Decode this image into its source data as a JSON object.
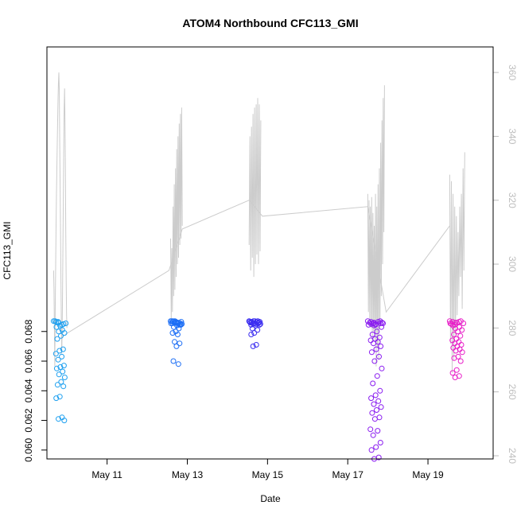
{
  "chart_data": {
    "type": "scatter",
    "title": "ATOM4 Northbound CFC113_GMI",
    "xlabel": "Date",
    "ylabel": "CFC113_GMI",
    "xlim": [
      "2018-05-09 12:00",
      "2018-05-20 15:00"
    ],
    "ylim": [
      0.0594,
      0.0872
    ],
    "y2lim": [
      239,
      368
    ],
    "x_ticks": [
      {
        "label": "May 11",
        "date": "2018-05-11"
      },
      {
        "label": "May 13",
        "date": "2018-05-13"
      },
      {
        "label": "May 15",
        "date": "2018-05-15"
      },
      {
        "label": "May 17",
        "date": "2018-05-17"
      },
      {
        "label": "May 19",
        "date": "2018-05-19"
      }
    ],
    "y_ticks": [
      {
        "label": "0.060",
        "value": 0.06
      },
      {
        "label": "0.062",
        "value": 0.062
      },
      {
        "label": "0.064",
        "value": 0.064
      },
      {
        "label": "0.066",
        "value": 0.066
      },
      {
        "label": "0.068",
        "value": 0.068
      }
    ],
    "y2_ticks": [
      {
        "label": "240",
        "value": 240
      },
      {
        "label": "260",
        "value": 260
      },
      {
        "label": "280",
        "value": 280
      },
      {
        "label": "300",
        "value": 300
      },
      {
        "label": "320",
        "value": 320
      },
      {
        "label": "340",
        "value": 340
      },
      {
        "label": "360",
        "value": 360
      }
    ],
    "grid": false,
    "legend": "none",
    "line_series_color": "#cccccc",
    "flights": [
      {
        "color": "#1ea0f0",
        "start": "2018-05-09 16:00",
        "end": "2018-05-10 00:00",
        "cfc113": [
          0.0687,
          0.0686,
          0.0685,
          0.0687,
          0.0684,
          0.0683,
          0.0681,
          0.068,
          0.0679,
          0.0677,
          0.0675,
          0.0668,
          0.0667,
          0.0665,
          0.0663,
          0.0661,
          0.0657,
          0.0656,
          0.0655,
          0.0653,
          0.0651,
          0.0649,
          0.0646,
          0.0644,
          0.0643,
          0.0636,
          0.0635,
          0.0622,
          0.0621,
          0.062
        ],
        "altitude": [
          298,
          292,
          280,
          268,
          285,
          300,
          312,
          322,
          330,
          338,
          345,
          352,
          357,
          360,
          355,
          340,
          325,
          310,
          295,
          282,
          272,
          278,
          290,
          305,
          320,
          335,
          348,
          355,
          345,
          330,
          310,
          295,
          284,
          280
        ]
      },
      {
        "color": "#1c6ef5",
        "start": "2018-05-12 14:00",
        "end": "2018-05-12 21:00",
        "cfc113": [
          0.0687,
          0.0687,
          0.0686,
          0.0687,
          0.0686,
          0.0685,
          0.0687,
          0.0686,
          0.0685,
          0.0684,
          0.0683,
          0.0682,
          0.068,
          0.0679,
          0.0678,
          0.0673,
          0.0672,
          0.067,
          0.066,
          0.0658
        ],
        "altitude": [
          308,
          282,
          305,
          285,
          318,
          290,
          325,
          292,
          330,
          296,
          336,
          300,
          340,
          302,
          344,
          306,
          347,
          308,
          349,
          312
        ]
      },
      {
        "color": "#3b2df0",
        "start": "2018-05-14 13:00",
        "end": "2018-05-14 20:00",
        "cfc113": [
          0.0687,
          0.0687,
          0.0687,
          0.0686,
          0.0687,
          0.0686,
          0.0686,
          0.0685,
          0.0685,
          0.0684,
          0.0682,
          0.0681,
          0.0679,
          0.0678,
          0.0671,
          0.067
        ],
        "altitude": [
          306,
          340,
          298,
          343,
          302,
          347,
          296,
          349,
          300,
          350,
          303,
          352,
          300,
          350,
          304,
          345
        ]
      },
      {
        "color": "#8a1cf0",
        "start": "2018-05-17 12:00",
        "end": "2018-05-17 22:00",
        "cfc113": [
          0.0687,
          0.0686,
          0.0687,
          0.0686,
          0.0685,
          0.0686,
          0.0685,
          0.0684,
          0.0683,
          0.068,
          0.0678,
          0.0676,
          0.0675,
          0.0674,
          0.0673,
          0.0672,
          0.067,
          0.0668,
          0.0666,
          0.0663,
          0.066,
          0.0655,
          0.065,
          0.0645,
          0.064,
          0.0637,
          0.0635,
          0.0633,
          0.0631,
          0.0629,
          0.0627,
          0.0625,
          0.0622,
          0.0621,
          0.0614,
          0.0613,
          0.061,
          0.0605,
          0.0602,
          0.06,
          0.0595,
          0.0594
        ],
        "altitude": [
          322,
          285,
          320,
          282,
          318,
          280,
          321,
          276,
          316,
          279,
          312,
          276,
          322,
          268,
          318,
          274,
          325,
          270,
          330,
          280,
          338,
          290,
          345,
          300,
          352,
          310,
          356
        ]
      },
      {
        "color": "#e81ec8",
        "start": "2018-05-19 13:00",
        "end": "2018-05-19 22:00",
        "cfc113": [
          0.0687,
          0.0686,
          0.0687,
          0.0685,
          0.0686,
          0.0684,
          0.0683,
          0.0682,
          0.0681,
          0.068,
          0.0678,
          0.0677,
          0.0675,
          0.0674,
          0.0673,
          0.0672,
          0.0671,
          0.067,
          0.0669,
          0.0668,
          0.0667,
          0.0666,
          0.0663,
          0.0662,
          0.066,
          0.0654,
          0.0652,
          0.065,
          0.0649
        ],
        "altitude": [
          328,
          275,
          326,
          266,
          322,
          270,
          318,
          278,
          315,
          284,
          310,
          290,
          318,
          296,
          322,
          286,
          330,
          298,
          335
        ]
      }
    ],
    "transit_line": [
      {
        "t": "2018-05-09 23:00",
        "alt": 278
      },
      {
        "t": "2018-05-12 13:00",
        "alt": 298
      },
      {
        "t": "2018-05-12 21:00",
        "alt": 311
      },
      {
        "t": "2018-05-14 13:00",
        "alt": 320
      },
      {
        "t": "2018-05-14 21:00",
        "alt": 315
      },
      {
        "t": "2018-05-17 12:00",
        "alt": 318
      },
      {
        "t": "2018-05-17 23:00",
        "alt": 285
      },
      {
        "t": "2018-05-19 13:00",
        "alt": 312
      }
    ]
  }
}
